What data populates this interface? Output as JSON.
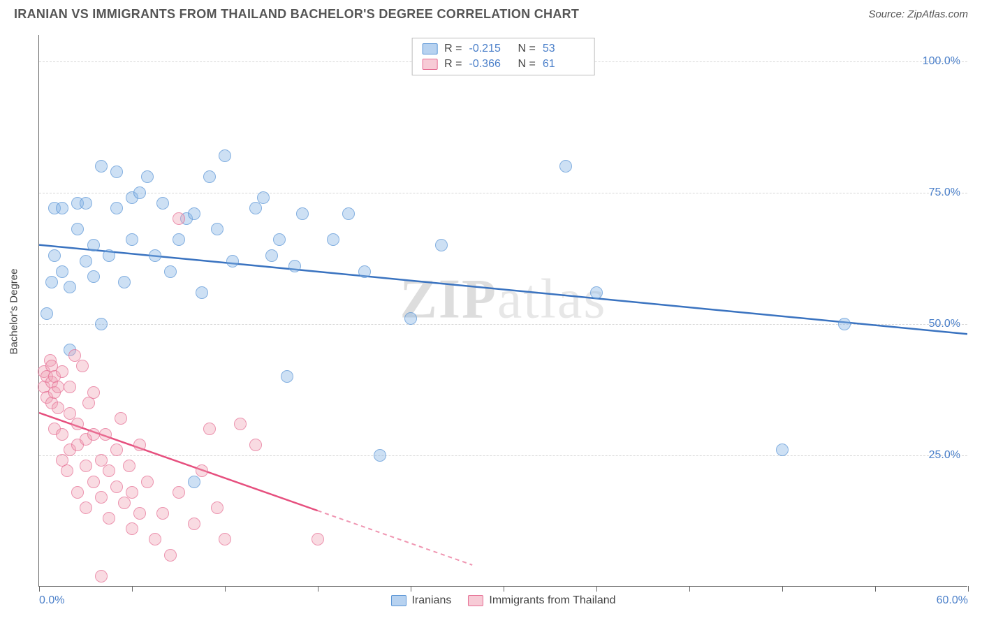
{
  "header": {
    "title": "IRANIAN VS IMMIGRANTS FROM THAILAND BACHELOR'S DEGREE CORRELATION CHART",
    "source": "Source: ZipAtlas.com"
  },
  "chart": {
    "type": "scatter",
    "ylabel": "Bachelor's Degree",
    "xlim": [
      0,
      60
    ],
    "ylim": [
      0,
      105
    ],
    "xticks": [
      0,
      6,
      12,
      18,
      24,
      30,
      36,
      42,
      48,
      54,
      60
    ],
    "xtick_labels": {
      "0": "0.0%",
      "60": "60.0%"
    },
    "yticks": [
      25,
      50,
      75,
      100
    ],
    "ytick_labels": {
      "25": "25.0%",
      "50": "50.0%",
      "75": "75.0%",
      "100": "100.0%"
    },
    "grid_color": "#d8d8d8",
    "background_color": "#ffffff",
    "border_color": "#666666",
    "watermark": "ZIPatlas",
    "series": [
      {
        "name": "Iranians",
        "color_fill": "rgba(135,180,230,0.55)",
        "color_stroke": "#5a95d6",
        "reg": {
          "x1": 0,
          "y1": 65,
          "x2": 60,
          "y2": 48,
          "color": "#3a73c0",
          "dash_from_x": null
        },
        "stats": {
          "R": "-0.215",
          "N": "53"
        },
        "points": [
          [
            0.5,
            52
          ],
          [
            0.8,
            58
          ],
          [
            1,
            63
          ],
          [
            1,
            72
          ],
          [
            1.5,
            60
          ],
          [
            1.5,
            72
          ],
          [
            2,
            45
          ],
          [
            2,
            57
          ],
          [
            2.5,
            68
          ],
          [
            2.5,
            73
          ],
          [
            3,
            62
          ],
          [
            3,
            73
          ],
          [
            3.5,
            59
          ],
          [
            3.5,
            65
          ],
          [
            4,
            50
          ],
          [
            4,
            80
          ],
          [
            4.5,
            63
          ],
          [
            5,
            72
          ],
          [
            5,
            79
          ],
          [
            5.5,
            58
          ],
          [
            6,
            66
          ],
          [
            6,
            74
          ],
          [
            6.5,
            75
          ],
          [
            7,
            78
          ],
          [
            7.5,
            63
          ],
          [
            8,
            73
          ],
          [
            8.5,
            60
          ],
          [
            9,
            66
          ],
          [
            9.5,
            70
          ],
          [
            10,
            20
          ],
          [
            10,
            71
          ],
          [
            10.5,
            56
          ],
          [
            11,
            78
          ],
          [
            11.5,
            68
          ],
          [
            12,
            82
          ],
          [
            12.5,
            62
          ],
          [
            14,
            72
          ],
          [
            14.5,
            74
          ],
          [
            15,
            63
          ],
          [
            15.5,
            66
          ],
          [
            16,
            40
          ],
          [
            16.5,
            61
          ],
          [
            17,
            71
          ],
          [
            19,
            66
          ],
          [
            20,
            71
          ],
          [
            21,
            60
          ],
          [
            22,
            25
          ],
          [
            24,
            51
          ],
          [
            26,
            65
          ],
          [
            34,
            80
          ],
          [
            36,
            56
          ],
          [
            48,
            26
          ],
          [
            52,
            50
          ]
        ]
      },
      {
        "name": "Immigrants from Thailand",
        "color_fill": "rgba(240,160,180,0.5)",
        "color_stroke": "#e66f94",
        "reg": {
          "x1": 0,
          "y1": 33,
          "x2": 28,
          "y2": 4,
          "color": "#e64f7e",
          "dash_from_x": 18
        },
        "stats": {
          "R": "-0.366",
          "N": "61"
        },
        "points": [
          [
            0.3,
            38
          ],
          [
            0.3,
            41
          ],
          [
            0.5,
            36
          ],
          [
            0.5,
            40
          ],
          [
            0.7,
            43
          ],
          [
            0.8,
            35
          ],
          [
            0.8,
            39
          ],
          [
            0.8,
            42
          ],
          [
            1,
            30
          ],
          [
            1,
            37
          ],
          [
            1,
            40
          ],
          [
            1.2,
            34
          ],
          [
            1.2,
            38
          ],
          [
            1.5,
            24
          ],
          [
            1.5,
            29
          ],
          [
            1.5,
            41
          ],
          [
            1.8,
            22
          ],
          [
            2,
            26
          ],
          [
            2,
            33
          ],
          [
            2,
            38
          ],
          [
            2.3,
            44
          ],
          [
            2.5,
            18
          ],
          [
            2.5,
            27
          ],
          [
            2.5,
            31
          ],
          [
            2.8,
            42
          ],
          [
            3,
            15
          ],
          [
            3,
            23
          ],
          [
            3,
            28
          ],
          [
            3.2,
            35
          ],
          [
            3.5,
            20
          ],
          [
            3.5,
            29
          ],
          [
            3.5,
            37
          ],
          [
            4,
            2
          ],
          [
            4,
            17
          ],
          [
            4,
            24
          ],
          [
            4.3,
            29
          ],
          [
            4.5,
            13
          ],
          [
            4.5,
            22
          ],
          [
            5,
            19
          ],
          [
            5,
            26
          ],
          [
            5.3,
            32
          ],
          [
            5.5,
            16
          ],
          [
            5.8,
            23
          ],
          [
            6,
            11
          ],
          [
            6,
            18
          ],
          [
            6.5,
            14
          ],
          [
            6.5,
            27
          ],
          [
            7,
            20
          ],
          [
            7.5,
            9
          ],
          [
            8,
            14
          ],
          [
            8.5,
            6
          ],
          [
            9,
            70
          ],
          [
            9,
            18
          ],
          [
            10,
            12
          ],
          [
            10.5,
            22
          ],
          [
            11,
            30
          ],
          [
            11.5,
            15
          ],
          [
            12,
            9
          ],
          [
            13,
            31
          ],
          [
            14,
            27
          ],
          [
            18,
            9
          ]
        ]
      }
    ],
    "legend_top": {
      "rows": [
        {
          "swatch": "blue",
          "r_label": "R =",
          "r_val": "-0.215",
          "n_label": "N =",
          "n_val": "53"
        },
        {
          "swatch": "pink",
          "r_label": "R =",
          "r_val": "-0.366",
          "n_label": "N =",
          "n_val": "61"
        }
      ]
    },
    "legend_bottom": [
      {
        "swatch": "blue",
        "label": "Iranians"
      },
      {
        "swatch": "pink",
        "label": "Immigrants from Thailand"
      }
    ]
  }
}
